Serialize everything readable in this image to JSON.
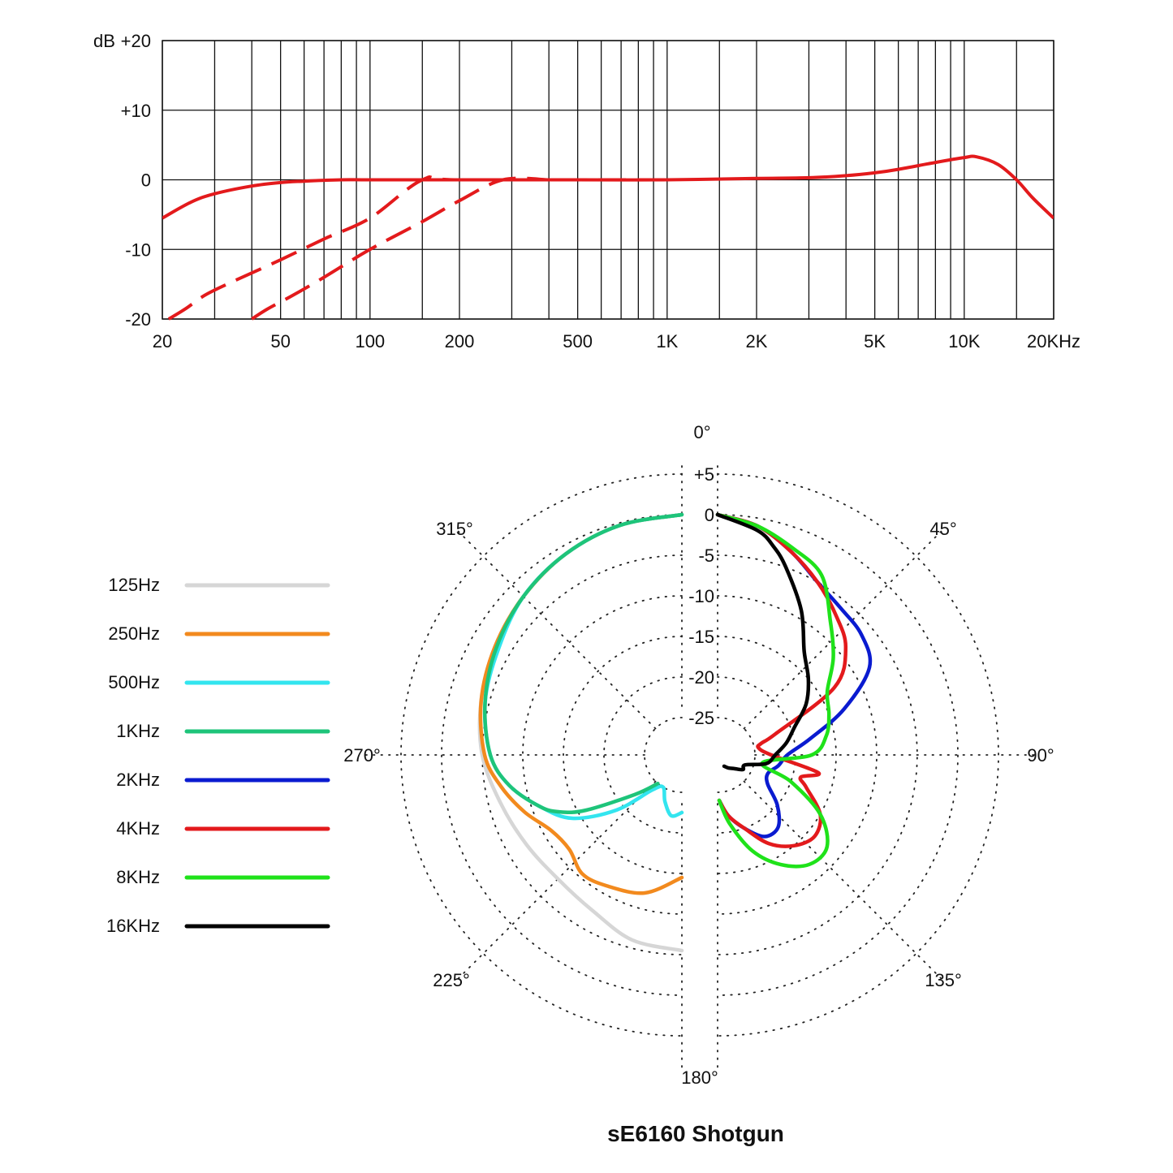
{
  "title": "sE6160  Shotgun",
  "chart_data": [
    {
      "type": "line",
      "name": "frequency-response",
      "xscale": "log",
      "xlim": [
        20,
        20000
      ],
      "ylim": [
        -20,
        20
      ],
      "y_ticks": [
        20,
        10,
        0,
        -10,
        -20
      ],
      "y_tick_labels": [
        "+20",
        "+10",
        "0",
        "-10",
        "-20"
      ],
      "y_unit": "dB",
      "x_ticks": [
        20,
        50,
        100,
        200,
        500,
        1000,
        2000,
        5000,
        10000,
        20000
      ],
      "x_tick_labels": [
        "20",
        "50",
        "100",
        "200",
        "500",
        "1K",
        "2K",
        "5K",
        "10K",
        "20KHz"
      ],
      "x_gridlines": [
        20,
        30,
        40,
        50,
        60,
        70,
        80,
        90,
        100,
        150,
        200,
        300,
        400,
        500,
        600,
        700,
        800,
        900,
        1000,
        1500,
        2000,
        3000,
        4000,
        5000,
        6000,
        7000,
        8000,
        9000,
        10000,
        15000,
        20000
      ],
      "series": [
        {
          "style": "solid",
          "color": "#e31a1c",
          "x": [
            20,
            25,
            30,
            40,
            50,
            60,
            80,
            100,
            200,
            500,
            1000,
            2000,
            3000,
            4000,
            5000,
            6000,
            8000,
            10000,
            11000,
            13000,
            15000,
            17000,
            20000
          ],
          "y": [
            -5.5,
            -3.2,
            -2,
            -0.9,
            -0.4,
            -0.2,
            0,
            0,
            0,
            0,
            0,
            0.2,
            0.3,
            0.6,
            1,
            1.5,
            2.5,
            3.2,
            3.3,
            2.2,
            0,
            -2.6,
            -5.5
          ]
        },
        {
          "style": "dashed",
          "color": "#e31a1c",
          "x": [
            21,
            24,
            28,
            35,
            50,
            70,
            100,
            150,
            200,
            1000
          ],
          "y": [
            -20,
            -18.5,
            -16.5,
            -14.5,
            -11.5,
            -8.5,
            -5.5,
            0,
            0,
            0
          ]
        },
        {
          "style": "dashed",
          "color": "#e31a1c",
          "x": [
            40,
            45,
            55,
            70,
            100,
            150,
            200,
            280,
            400
          ],
          "y": [
            -20,
            -18.6,
            -16.6,
            -14,
            -10,
            -6,
            -3,
            0,
            0
          ]
        }
      ]
    },
    {
      "type": "polar",
      "name": "polar-pattern",
      "r_ticks": [
        5,
        0,
        -5,
        -10,
        -15,
        -20,
        -25
      ],
      "r_tick_labels": [
        "+5",
        "0",
        "-5",
        "-10",
        "-15",
        "-20",
        "-25"
      ],
      "angle_labels": [
        {
          "deg": 0,
          "label": "0°"
        },
        {
          "deg": 45,
          "label": "45°"
        },
        {
          "deg": 90,
          "label": "90°"
        },
        {
          "deg": 135,
          "label": "135°"
        },
        {
          "deg": 180,
          "label": "180°"
        },
        {
          "deg": 225,
          "label": "225°"
        },
        {
          "deg": 270,
          "label": "270°"
        },
        {
          "deg": 315,
          "label": "315°"
        }
      ],
      "series": [
        {
          "name": "125Hz",
          "color": "#d6d6d6",
          "side": "left",
          "angles": [
            0,
            15,
            30,
            45,
            60,
            75,
            90,
            105,
            120,
            135,
            150,
            165,
            180
          ],
          "db": [
            0,
            -0.3,
            -1,
            -2,
            -3,
            -4,
            -5,
            -6.5,
            -7.5,
            -8,
            -7.5,
            -6,
            -5.5
          ]
        },
        {
          "name": "250Hz",
          "color": "#f28a1e",
          "side": "left",
          "angles": [
            0,
            15,
            30,
            45,
            60,
            75,
            90,
            100,
            110,
            120,
            130,
            140,
            150,
            165,
            180
          ],
          "db": [
            0,
            -0.3,
            -1,
            -2,
            -3,
            -4,
            -5.3,
            -7,
            -9,
            -11,
            -11.5,
            -10.5,
            -11,
            -12,
            -14.5
          ]
        },
        {
          "name": "500Hz",
          "color": "#33e5ef",
          "side": "left",
          "angles": [
            0,
            15,
            30,
            45,
            60,
            75,
            90,
            100,
            110,
            120,
            130,
            140,
            150,
            160,
            170,
            180
          ],
          "db": [
            0,
            -0.3,
            -1,
            -2,
            -3.5,
            -4.5,
            -6,
            -8,
            -11,
            -14,
            -19,
            -24,
            -25,
            -23.5,
            -22,
            -22.5
          ]
        },
        {
          "name": "1KHz",
          "color": "#1ec47a",
          "side": "left",
          "angles": [
            0,
            15,
            30,
            45,
            60,
            75,
            90,
            100,
            110,
            115,
            120,
            130,
            140
          ],
          "db": [
            0,
            -0.3,
            -1,
            -2,
            -3.2,
            -4.5,
            -6,
            -8,
            -11,
            -13,
            -16,
            -22,
            -25
          ]
        },
        {
          "name": "2KHz",
          "color": "#0a1bd0",
          "side": "right",
          "angles": [
            0,
            10,
            20,
            30,
            40,
            50,
            60,
            70,
            80,
            90,
            100,
            110,
            120,
            130,
            140,
            150,
            160,
            170,
            178
          ],
          "db": [
            0,
            -1,
            -3,
            -5,
            -6,
            -6.5,
            -8,
            -13,
            -18,
            -21,
            -22,
            -23,
            -22.5,
            -20,
            -18,
            -18,
            -20,
            -22,
            -24
          ]
        },
        {
          "name": "4KHz",
          "color": "#e31a1c",
          "side": "right",
          "angles": [
            0,
            10,
            20,
            30,
            40,
            50,
            60,
            70,
            75,
            80,
            90,
            100,
            105,
            110,
            120,
            130,
            140,
            150,
            160,
            170,
            178
          ],
          "db": [
            0,
            -1,
            -3,
            -5,
            -7,
            -9,
            -13,
            -22,
            -24,
            -24.5,
            -23,
            -17,
            -19,
            -18,
            -15,
            -14,
            -15,
            -17,
            -20,
            -22,
            -24
          ]
        },
        {
          "name": "8KHz",
          "color": "#1fe21a",
          "side": "right",
          "angles": [
            0,
            10,
            20,
            30,
            40,
            50,
            60,
            70,
            80,
            90,
            100,
            110,
            120,
            130,
            140,
            150,
            160,
            170,
            178
          ],
          "db": [
            0,
            -1,
            -2.5,
            -4,
            -8,
            -11,
            -14,
            -15,
            -16,
            -18,
            -24,
            -20,
            -15,
            -12,
            -12,
            -14,
            -17,
            -21,
            -24
          ]
        },
        {
          "name": "16KHz",
          "color": "#000000",
          "side": "right",
          "angles": [
            0,
            10,
            15,
            20,
            30,
            40,
            50,
            60,
            70,
            80,
            90,
            100,
            110,
            120,
            130,
            140,
            150
          ],
          "db": [
            0,
            -1.5,
            -3,
            -5,
            -9,
            -13,
            -15,
            -17,
            -19.5,
            -21,
            -22.5,
            -23.5,
            -26,
            -26,
            -27,
            -27.5,
            -28
          ]
        }
      ]
    }
  ]
}
